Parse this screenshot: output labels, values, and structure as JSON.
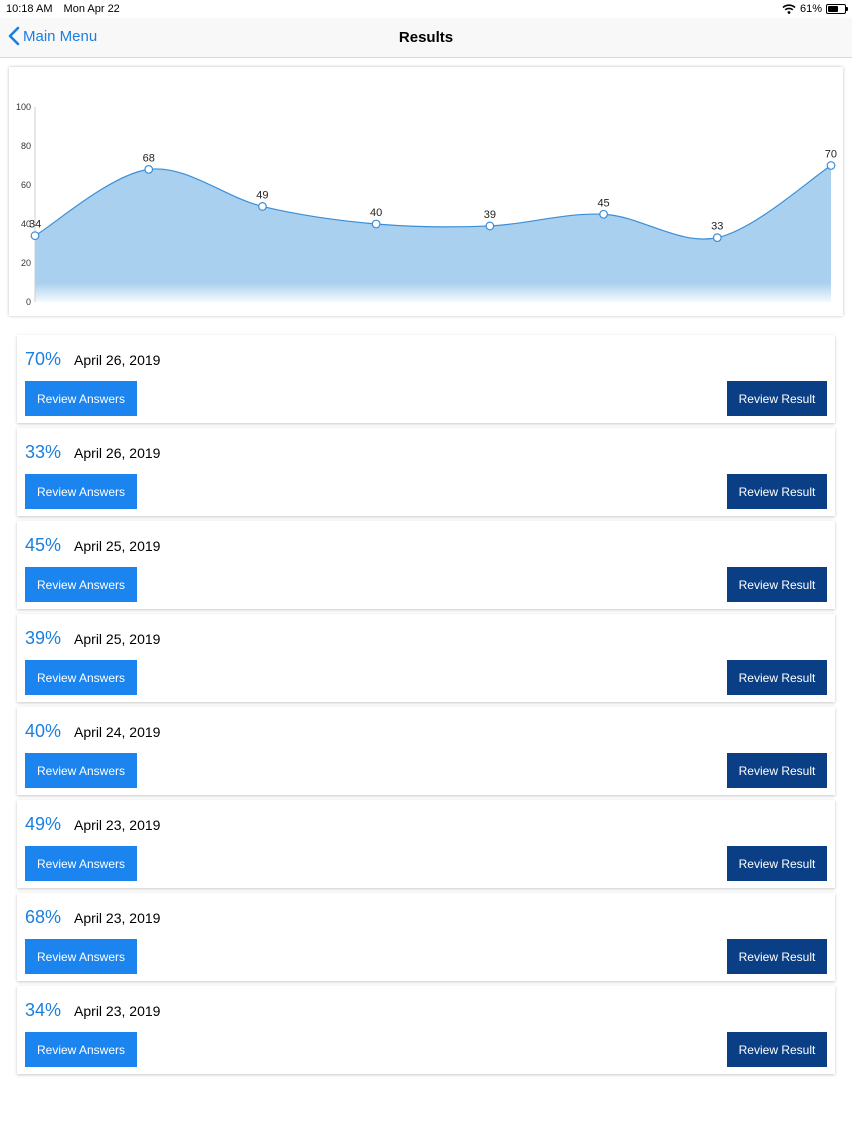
{
  "status": {
    "time": "10:18 AM",
    "date": "Mon Apr 22",
    "battery": "61%",
    "battery_level": 0.61
  },
  "nav": {
    "back_label": "Main Menu",
    "title": "Results"
  },
  "chart_data": {
    "type": "area",
    "x": [
      1,
      2,
      3,
      4,
      5,
      6,
      7,
      8
    ],
    "values": [
      34,
      68,
      49,
      40,
      39,
      45,
      33,
      70
    ],
    "data_labels": [
      "34",
      "68",
      "49",
      "40",
      "39",
      "45",
      "33",
      "70"
    ],
    "yticks": [
      "0",
      "20",
      "40",
      "60",
      "80",
      "100"
    ],
    "ylim": [
      0,
      100
    ],
    "colors": {
      "line": "#3a8ed8",
      "fill": "#a9d1ef"
    }
  },
  "results": [
    {
      "percent": "70%",
      "date": "April 26, 2019",
      "answers_label": "Review Answers",
      "result_label": "Review Result"
    },
    {
      "percent": "33%",
      "date": "April 26, 2019",
      "answers_label": "Review Answers",
      "result_label": "Review Result"
    },
    {
      "percent": "45%",
      "date": "April 25, 2019",
      "answers_label": "Review Answers",
      "result_label": "Review Result"
    },
    {
      "percent": "39%",
      "date": "April 25, 2019",
      "answers_label": "Review Answers",
      "result_label": "Review Result"
    },
    {
      "percent": "40%",
      "date": "April 24, 2019",
      "answers_label": "Review Answers",
      "result_label": "Review Result"
    },
    {
      "percent": "49%",
      "date": "April 23, 2019",
      "answers_label": "Review Answers",
      "result_label": "Review Result"
    },
    {
      "percent": "68%",
      "date": "April 23, 2019",
      "answers_label": "Review Answers",
      "result_label": "Review Result"
    },
    {
      "percent": "34%",
      "date": "April 23, 2019",
      "answers_label": "Review Answers",
      "result_label": "Review Result"
    }
  ]
}
